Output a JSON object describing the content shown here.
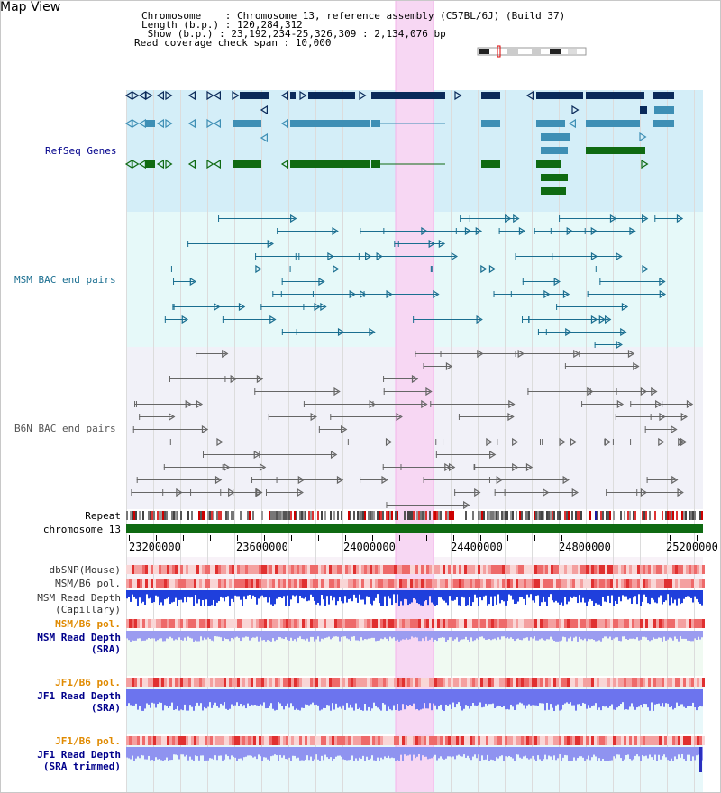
{
  "title": "Map View",
  "header": {
    "chromosome": "Chromosome    : Chromosome 13, reference assembly (C57BL/6J) (Build 37)",
    "length": "Length (b.p.) : 120,284,312",
    "show": " Show (b.p.) : 23,192,234-25,326,309 : 2,134,076 bp",
    "coverage": "Read coverage check span : 10,000"
  },
  "tracks": {
    "refseq": "RefSeq Genes",
    "msm_bac": "MSM BAC end pairs",
    "b6n_bac": "B6N BAC end pairs",
    "repeat": "Repeat",
    "chromosome": "chromosome 13",
    "dbsnp": "dbSNP(Mouse)",
    "msm_b6_pol": "MSM/B6 pol.",
    "msm_depth_cap_1": "MSM Read Depth",
    "msm_depth_cap_2": "(Capillary)",
    "msm_b6_pol_sra": "MSM/B6 pol.",
    "msm_depth_sra_1": "MSM Read Depth",
    "msm_depth_sra_2": "(SRA)",
    "jf1_b6_pol": "JF1/B6 pol.",
    "jf1_depth_sra_1": "JF1 Read Depth",
    "jf1_depth_sra_2": "(SRA)",
    "jf1_b6_pol_2": "JF1/B6 pol.",
    "jf1_depth_trim_1": "JF1 Read Depth",
    "jf1_depth_trim_2": "(SRA trimmed)"
  },
  "axis_ticks": [
    "23200000",
    "23600000",
    "24000000",
    "24400000",
    "24800000",
    "25200000"
  ],
  "colors": {
    "refseq_bg": "#d4eef8",
    "msm_bg": "#e6f9f9",
    "b6n_bg": "#f1f1f8",
    "highlight": "#f7d7f3",
    "navy": "#0b2a5a",
    "teal": "#3e8fb5",
    "green": "#0f6a12",
    "msm_line": "#1a6e90",
    "b6n_line": "#666666",
    "label_navy": "#00008b",
    "label_orange": "#e08a00"
  }
}
